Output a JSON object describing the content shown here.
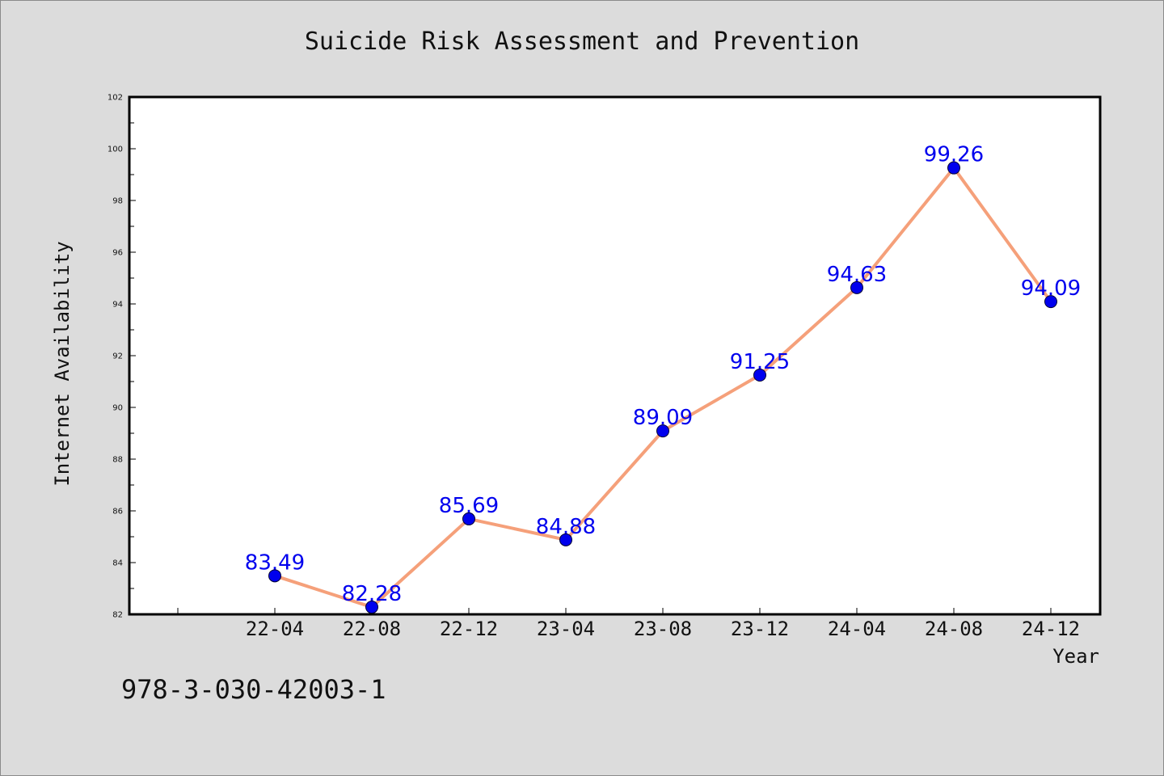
{
  "chart_data": {
    "type": "line",
    "title": "Suicide Risk Assessment and Prevention",
    "xlabel": "Year",
    "ylabel": "Internet Availability",
    "categories": [
      "22-04",
      "22-08",
      "22-12",
      "23-04",
      "23-08",
      "23-12",
      "24-04",
      "24-08",
      "24-12"
    ],
    "series": [
      {
        "values": [
          83.49,
          82.28,
          85.69,
          84.88,
          89.09,
          91.25,
          94.63,
          99.26,
          94.09
        ]
      }
    ],
    "data_labels": [
      "83.49",
      "82.28",
      "85.69",
      "84.88",
      "89.09",
      "91.25",
      "94.63",
      "99.26",
      "94.09"
    ],
    "ylim": [
      82,
      102
    ],
    "y_ticks": [
      82,
      84,
      86,
      88,
      90,
      92,
      94,
      96,
      98,
      100,
      102
    ],
    "grid": false,
    "line_color": "#f5a07a",
    "marker_color": "#0000ee",
    "label_color": "#0000ee"
  },
  "watermark": "978-3-030-42003-1"
}
